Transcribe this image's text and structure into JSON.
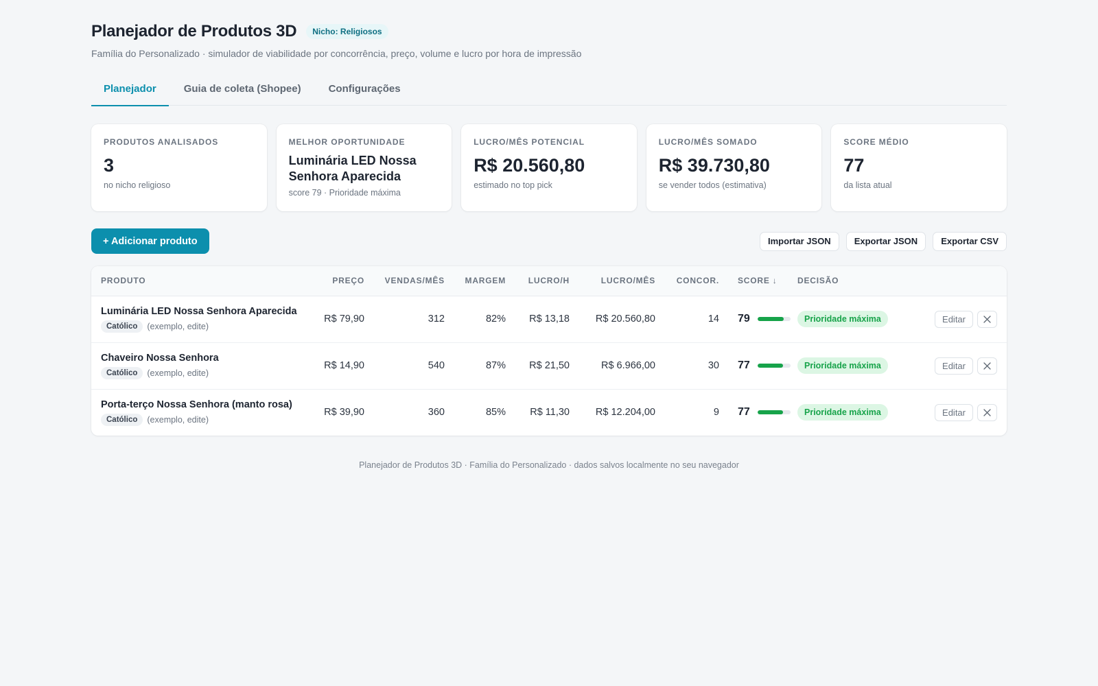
{
  "header": {
    "title": "Planejador de Produtos 3D",
    "niche_badge": "Nicho: Religiosos",
    "subtitle": "Família do Personalizado · simulador de viabilidade por concorrência, preço, volume e lucro por hora de impressão"
  },
  "tabs": [
    {
      "label": "Planejador",
      "active": true
    },
    {
      "label": "Guia de coleta (Shopee)",
      "active": false
    },
    {
      "label": "Configurações",
      "active": false
    }
  ],
  "cards": [
    {
      "label": "PRODUTOS ANALISADOS",
      "value": "3",
      "note": "no nicho religioso"
    },
    {
      "label": "MELHOR OPORTUNIDADE",
      "value": "Luminária LED Nossa Senhora Aparecida",
      "note": "score 79 · Prioridade máxima"
    },
    {
      "label": "LUCRO/MÊS POTENCIAL",
      "value": "R$ 20.560,80",
      "note": "estimado no top pick"
    },
    {
      "label": "LUCRO/MÊS SOMADO",
      "value": "R$ 39.730,80",
      "note": "se vender todos (estimativa)"
    },
    {
      "label": "SCORE MÉDIO",
      "value": "77",
      "note": "da lista atual"
    }
  ],
  "actions": {
    "add_product": "+ Adicionar produto",
    "import_json": "Importar JSON",
    "export_json": "Exportar JSON",
    "export_csv": "Exportar CSV"
  },
  "table": {
    "headers": {
      "product": "PRODUTO",
      "price": "PREÇO",
      "sales": "VENDAS/MÊS",
      "margin": "MARGEM",
      "profit_hour": "LUCRO/H",
      "profit_month": "LUCRO/MÊS",
      "competition": "CONCOR.",
      "score": "SCORE ↓",
      "decision": "DECISÃO"
    },
    "rows": [
      {
        "name": "Luminária LED Nossa Senhora Aparecida",
        "tag": "Católico",
        "note": "(exemplo, edite)",
        "price": "R$ 79,90",
        "sales": "312",
        "margin": "82%",
        "profit_hour": "R$ 13,18",
        "profit_month": "R$ 20.560,80",
        "competition": "14",
        "score": "79",
        "score_value": 79,
        "decision": "Prioridade máxima",
        "edit": "Editar"
      },
      {
        "name": "Chaveiro Nossa Senhora",
        "tag": "Católico",
        "note": "(exemplo, edite)",
        "price": "R$ 14,90",
        "sales": "540",
        "margin": "87%",
        "profit_hour": "R$ 21,50",
        "profit_month": "R$ 6.966,00",
        "competition": "30",
        "score": "77",
        "score_value": 77,
        "decision": "Prioridade máxima",
        "edit": "Editar"
      },
      {
        "name": "Porta-terço Nossa Senhora (manto rosa)",
        "tag": "Católico",
        "note": "(exemplo, edite)",
        "price": "R$ 39,90",
        "sales": "360",
        "margin": "85%",
        "profit_hour": "R$ 11,30",
        "profit_month": "R$ 12.204,00",
        "competition": "9",
        "score": "77",
        "score_value": 77,
        "decision": "Prioridade máxima",
        "edit": "Editar"
      }
    ]
  },
  "footer": "Planejador de Produtos 3D · Família do Personalizado · dados salvos localmente no seu navegador",
  "colors": {
    "accent": "#0c8fad",
    "success": "#17a34a",
    "success_bg": "#dcf6e4",
    "background": "#f4f6f8"
  },
  "icons": {
    "delete": "close-icon",
    "sort": "arrow-down"
  }
}
